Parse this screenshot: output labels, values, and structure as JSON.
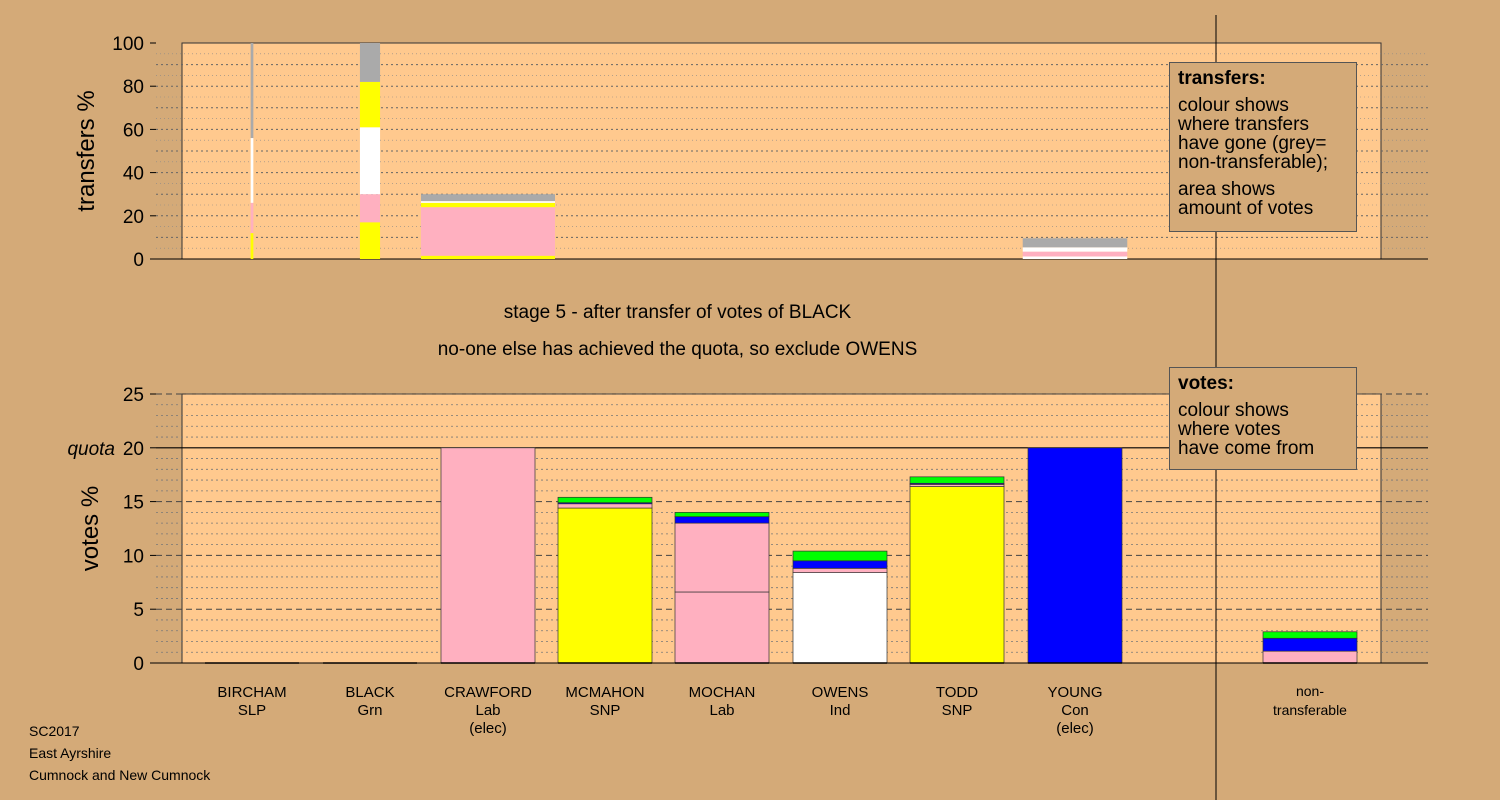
{
  "colors": {
    "background": "#d4aa78",
    "plot_bg": "#ffc98e",
    "Lab": "#ffb0c0",
    "SNP": "#ffff00",
    "Con": "#0000ff",
    "Grn": "#00ff00",
    "Ind": "#ffffff",
    "SLP": "#ff9999",
    "nontransferable": "#aaaaaa"
  },
  "caption": {
    "line1": "stage 5 - after transfer of votes of BLACK",
    "line2": "no-one else has achieved the quota, so exclude OWENS"
  },
  "legend_transfers": {
    "title": "transfers:",
    "lines": [
      "colour shows",
      "where transfers",
      "have gone (grey=",
      "non-transferable);"
    ],
    "lines2": [
      "area shows",
      "amount of votes"
    ]
  },
  "legend_votes": {
    "title": "votes:",
    "lines": [
      "colour shows",
      "where votes",
      "have come from"
    ]
  },
  "footer": {
    "line1": "SC2017",
    "line2": "East Ayrshire",
    "line3": "Cumnock and New Cumnock"
  },
  "chart_data": [
    {
      "type": "bar",
      "panel": "transfers",
      "ylabel": "transfers %",
      "ylim": [
        0,
        100
      ],
      "yticks": [
        0,
        20,
        40,
        60,
        80,
        100
      ],
      "columns": [
        {
          "index": 0,
          "width_fraction": 0.02,
          "segments": [
            {
              "party": "SNP",
              "value": 12
            },
            {
              "party": "Lab",
              "value": 14
            },
            {
              "party": "Ind",
              "value": 30
            },
            {
              "party": "nontransferable",
              "value": 44
            }
          ]
        },
        {
          "index": 1,
          "width_fraction": 0.15,
          "segments": [
            {
              "party": "SNP",
              "value": 17
            },
            {
              "party": "Lab",
              "value": 13
            },
            {
              "party": "Ind",
              "value": 31
            },
            {
              "party": "SNP",
              "value": 21
            },
            {
              "party": "nontransferable",
              "value": 18
            }
          ]
        },
        {
          "index": 2,
          "width_fraction": 1.0,
          "segments": [
            {
              "party": "SNP",
              "value": 1.5
            },
            {
              "party": "Lab",
              "value": 22.5
            },
            {
              "party": "SNP",
              "value": 2
            },
            {
              "party": "Ind",
              "value": 0.8
            },
            {
              "party": "nontransferable",
              "value": 3.2
            }
          ]
        },
        {
          "index": 7,
          "width_fraction": 0.78,
          "segments": [
            {
              "party": "Ind",
              "value": 1.2
            },
            {
              "party": "Lab",
              "value": 2.2
            },
            {
              "party": "Ind",
              "value": 2
            },
            {
              "party": "nontransferable",
              "value": 4.2
            }
          ]
        }
      ]
    },
    {
      "type": "bar",
      "panel": "votes",
      "ylabel": "votes %",
      "ylim": [
        0,
        25
      ],
      "yticks": [
        0,
        5,
        10,
        15,
        20,
        25
      ],
      "quota": 20,
      "quota_label": "quota",
      "categories": [
        {
          "name": "BIRCHAM",
          "party": "SLP",
          "status": ""
        },
        {
          "name": "BLACK",
          "party": "Grn",
          "status": ""
        },
        {
          "name": "CRAWFORD",
          "party": "Lab",
          "status": "(elec)"
        },
        {
          "name": "MCMAHON",
          "party": "SNP",
          "status": ""
        },
        {
          "name": "MOCHAN",
          "party": "Lab",
          "status": ""
        },
        {
          "name": "OWENS",
          "party": "Ind",
          "status": ""
        },
        {
          "name": "TODD",
          "party": "SNP",
          "status": ""
        },
        {
          "name": "YOUNG",
          "party": "Con",
          "status": "(elec)"
        }
      ],
      "nontransferable_label": [
        "non-",
        "transferable"
      ],
      "stacks": [
        [],
        [],
        [
          {
            "party": "Lab",
            "value": 20
          }
        ],
        [
          {
            "party": "SNP",
            "value": 14.4
          },
          {
            "party": "Lab",
            "value": 0.4
          },
          {
            "party": "Con",
            "value": 0.1
          },
          {
            "party": "Grn",
            "value": 0.5
          }
        ],
        [
          {
            "party": "Lab",
            "value": 6.6
          },
          {
            "party": "Lab",
            "value": 6.4
          },
          {
            "party": "Con",
            "value": 0.6
          },
          {
            "party": "Grn",
            "value": 0.4
          }
        ],
        [
          {
            "party": "Ind",
            "value": 8.4
          },
          {
            "party": "Lab",
            "value": 0.4
          },
          {
            "party": "Con",
            "value": 0.7
          },
          {
            "party": "Grn",
            "value": 0.9
          }
        ],
        [
          {
            "party": "SNP",
            "value": 16.4
          },
          {
            "party": "Lab",
            "value": 0.2
          },
          {
            "party": "Con",
            "value": 0.1
          },
          {
            "party": "Grn",
            "value": 0.6
          }
        ],
        [
          {
            "party": "Con",
            "value": 20
          }
        ]
      ],
      "nontransferable_stack": [
        {
          "party": "Lab",
          "value": 1.1
        },
        {
          "party": "Con",
          "value": 1.2
        },
        {
          "party": "Grn",
          "value": 0.6
        }
      ]
    }
  ]
}
